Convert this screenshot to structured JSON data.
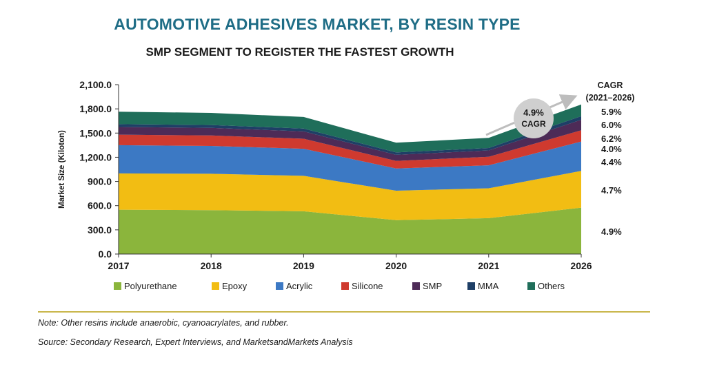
{
  "title": "AUTOMOTIVE ADHESIVES MARKET, BY RESIN TYPE",
  "subtitle": "SMP SEGMENT TO REGISTER THE FASTEST GROWTH",
  "note": "Note: Other resins include anaerobic, cyanoacrylates, and rubber.",
  "source": "Source: Secondary Research, Expert Interviews, and MarketsandMarkets Analysis",
  "colors": {
    "Polyurethane": "#8bb53c",
    "Epoxy": "#f2bd13",
    "Acrylic": "#3c79c4",
    "Silicone": "#cf3a2f",
    "SMP": "#4d2b57",
    "MMA": "#1e3f66",
    "Others": "#1f6e5a"
  },
  "chart_data": {
    "type": "area",
    "stacked": true,
    "ylabel": "Market Size (Kiloton)",
    "ylim": [
      0,
      2100
    ],
    "yticks": [
      "0.0",
      "300.0",
      "600.0",
      "900.0",
      "1,200.0",
      "1,500.0",
      "1,800.0",
      "2,100.0"
    ],
    "categories": [
      "2017",
      "2018",
      "2019",
      "2020",
      "2021",
      "2026"
    ],
    "series": [
      {
        "name": "Polyurethane",
        "values": [
          550,
          545,
          530,
          420,
          445,
          575
        ]
      },
      {
        "name": "Epoxy",
        "values": [
          450,
          450,
          440,
          365,
          370,
          455
        ]
      },
      {
        "name": "Acrylic",
        "values": [
          350,
          345,
          335,
          275,
          285,
          365
        ]
      },
      {
        "name": "Silicone",
        "values": [
          130,
          130,
          125,
          95,
          105,
          140
        ]
      },
      {
        "name": "SMP",
        "values": [
          95,
          95,
          90,
          75,
          80,
          130
        ]
      },
      {
        "name": "MMA",
        "values": [
          35,
          35,
          35,
          30,
          30,
          45
        ]
      },
      {
        "name": "Others",
        "values": [
          155,
          150,
          145,
          120,
          125,
          145
        ]
      }
    ],
    "cagr_header": [
      "CAGR",
      "(2021–2026)"
    ],
    "cagr_labels": [
      "5.9%",
      "6.0%",
      "6.2%",
      "4.0%",
      "4.4%",
      "4.7%",
      "4.9%"
    ],
    "callout": {
      "value": "4.9%",
      "label": "CAGR"
    }
  }
}
